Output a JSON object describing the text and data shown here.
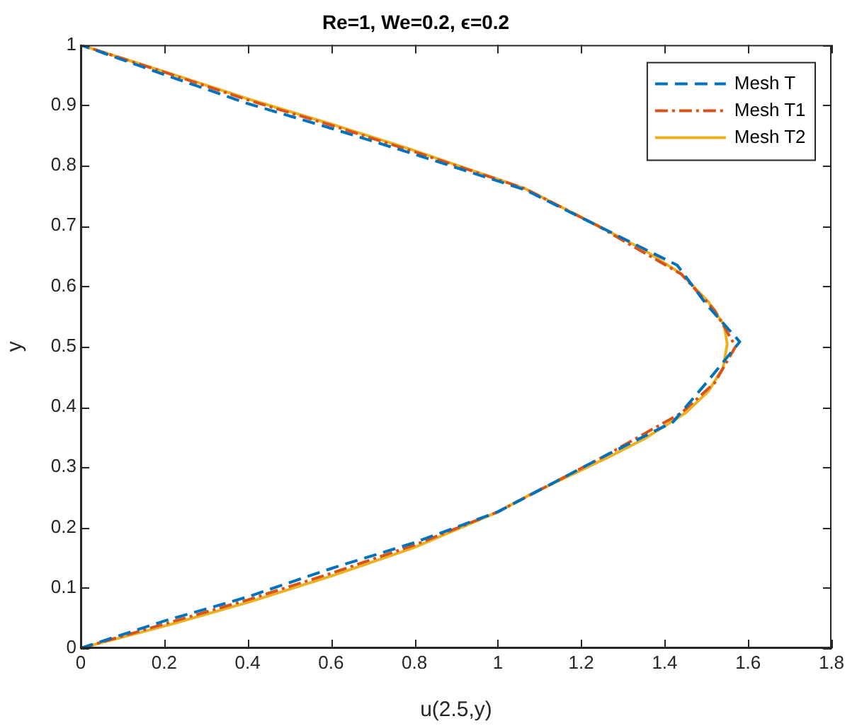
{
  "chart_data": {
    "type": "line",
    "title": "Re=1, We=0.2, ϵ=0.2",
    "xlabel": "u(2.5,y)",
    "ylabel": "y",
    "xlim": [
      0,
      1.8
    ],
    "xticks": [
      0,
      0.2,
      0.4,
      0.6,
      0.8,
      1,
      1.2,
      1.4,
      1.6,
      1.8
    ],
    "ylim": [
      0,
      1
    ],
    "yticks": [
      0,
      0.1,
      0.2,
      0.3,
      0.4,
      0.5,
      0.6,
      0.7,
      0.8,
      0.9,
      1
    ],
    "legend": "top right",
    "marker": "none",
    "series": [
      {
        "name": "Mesh T",
        "color": "#0072bd",
        "line_style": "dashed",
        "x": [
          0,
          0.2,
          0.4,
          0.6,
          0.8,
          1.0,
          1.26,
          1.42,
          1.5,
          1.58,
          1.5,
          1.43,
          1.24,
          1.065,
          0.8,
          0.6,
          0.4,
          0.2,
          0
        ],
        "values": [
          0,
          0.045,
          0.085,
          0.132,
          0.175,
          0.226,
          0.32,
          0.375,
          0.44,
          0.508,
          0.57,
          0.635,
          0.7,
          0.76,
          0.819,
          0.862,
          0.903,
          0.951,
          1
        ]
      },
      {
        "name": "Mesh T1",
        "color": "#d95319",
        "line_style": "dashdot",
        "x": [
          0,
          0.2,
          0.4,
          0.6,
          0.8,
          1.0,
          1.26,
          1.44,
          1.52,
          1.57,
          1.52,
          1.44,
          1.24,
          1.065,
          0.8,
          0.6,
          0.4,
          0.2,
          0
        ],
        "values": [
          0,
          0.04,
          0.08,
          0.124,
          0.171,
          0.226,
          0.32,
          0.39,
          0.44,
          0.5,
          0.56,
          0.62,
          0.7,
          0.762,
          0.823,
          0.867,
          0.909,
          0.955,
          1
        ]
      },
      {
        "name": "Mesh T2",
        "color": "#edb120",
        "line_style": "solid",
        "x": [
          0,
          0.208,
          0.406,
          0.603,
          0.8,
          1.0,
          1.087,
          1.263,
          1.351,
          1.45,
          1.505,
          1.54,
          1.55,
          1.543,
          1.505,
          1.439,
          1.351,
          1.241,
          1.065,
          0.8,
          0.6,
          0.4,
          0.2,
          0
        ],
        "values": [
          0,
          0.038,
          0.077,
          0.12,
          0.167,
          0.226,
          0.258,
          0.316,
          0.347,
          0.39,
          0.426,
          0.465,
          0.504,
          0.535,
          0.574,
          0.621,
          0.66,
          0.7,
          0.762,
          0.825,
          0.869,
          0.911,
          0.956,
          1
        ]
      }
    ]
  }
}
